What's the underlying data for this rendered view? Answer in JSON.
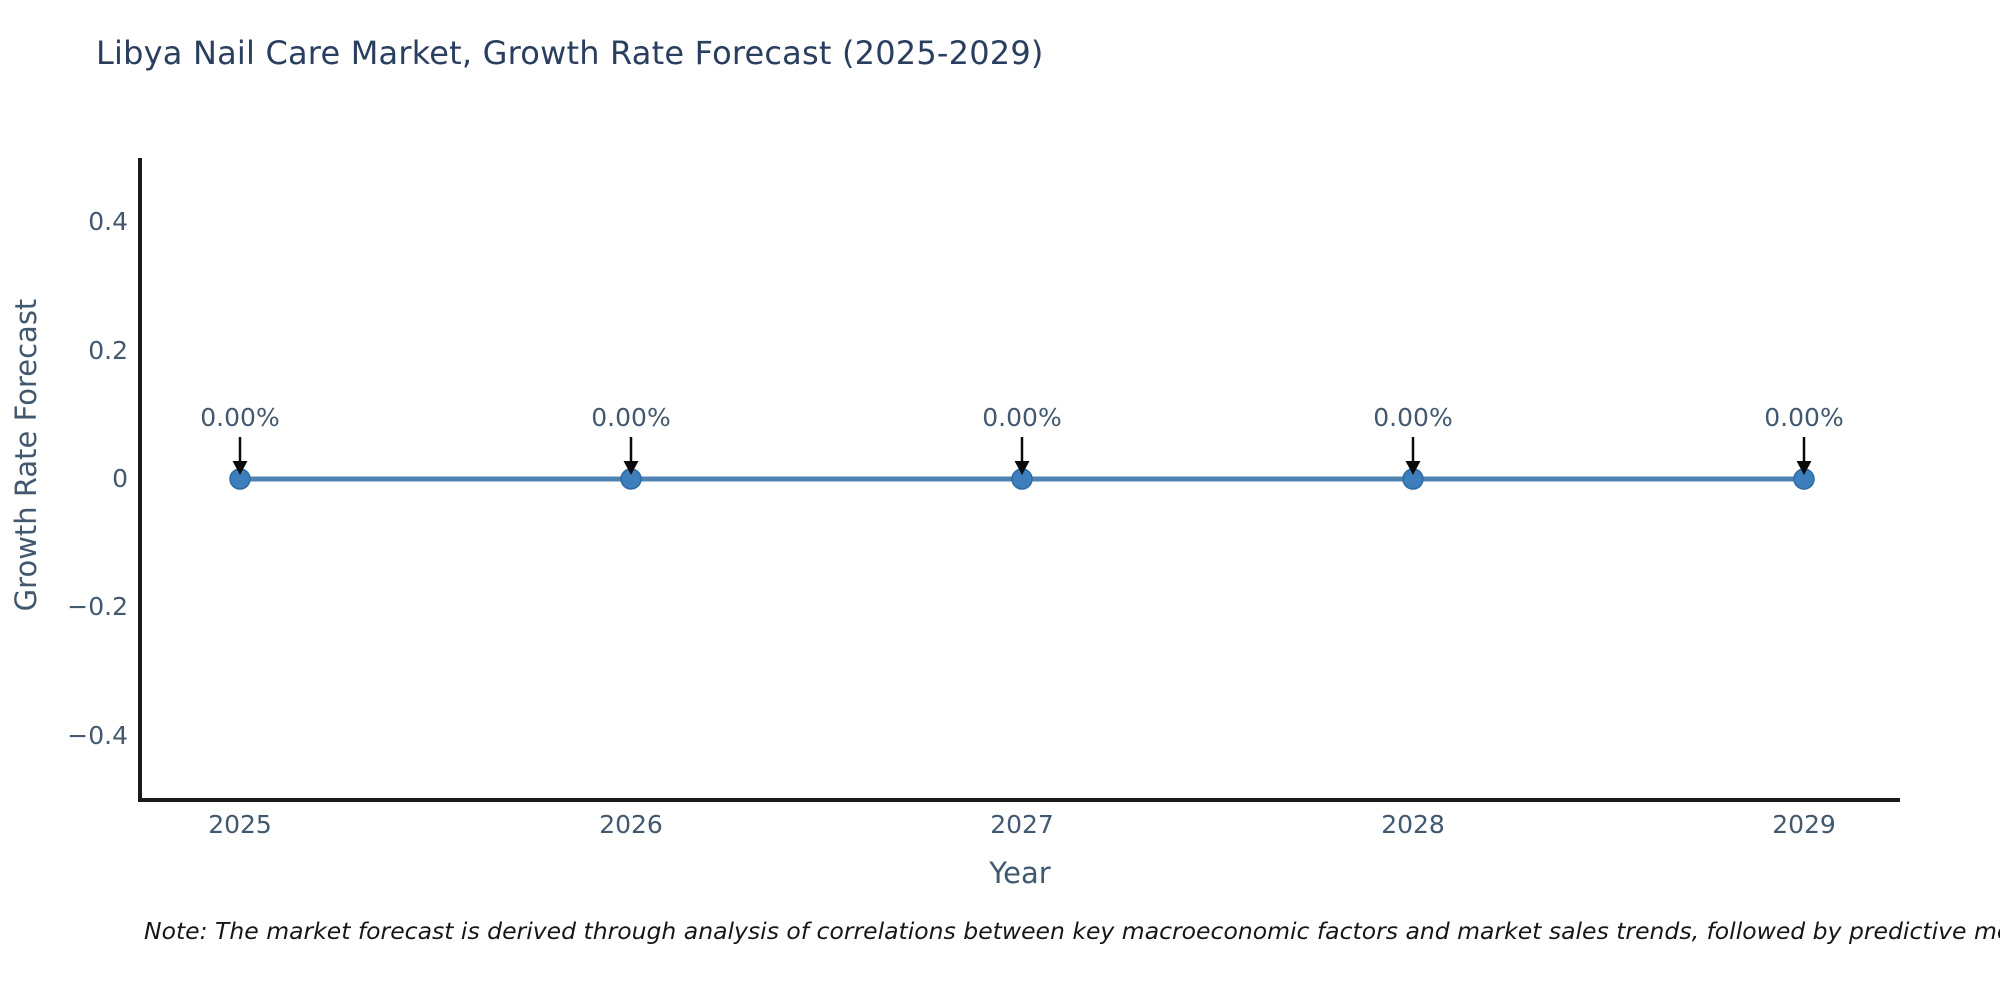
{
  "chart": {
    "title": "Libya Nail Care Market, Growth Rate Forecast (2025-2029)",
    "note": "Note: The market forecast is derived through analysis of correlations between key macroeconomic factors and market sales trends, followed by predictive modeling to project future sales"
  },
  "chart_data": {
    "type": "line",
    "title": "Libya Nail Care Market, Growth Rate Forecast (2025-2029)",
    "xlabel": "Year",
    "ylabel": "Growth Rate Forecast",
    "categories": [
      "2025",
      "2026",
      "2027",
      "2028",
      "2029"
    ],
    "values": [
      0,
      0,
      0,
      0,
      0
    ],
    "point_labels": [
      "0.00%",
      "0.00%",
      "0.00%",
      "0.00%",
      "0.00%"
    ],
    "ylim": [
      -0.5,
      0.5
    ],
    "yticks": [
      0.4,
      0.2,
      0,
      -0.2,
      -0.4
    ],
    "ytick_labels": [
      "0.4",
      "0.2",
      "0",
      "−0.2",
      "−0.4"
    ],
    "grid": false,
    "legend": "none",
    "marker_style": "circle-with-down-arrow-annotation",
    "colors": {
      "line": "#4f83b1",
      "marker": "#3d7ebd",
      "marker_edge": "#2f6ba3",
      "arrow": "#0a0a0a",
      "axis": "#1a1a1a",
      "tick_text": "#42586e",
      "title_text": "#2a3f5f",
      "note_text": "#161616",
      "background": "#ffffff"
    }
  }
}
